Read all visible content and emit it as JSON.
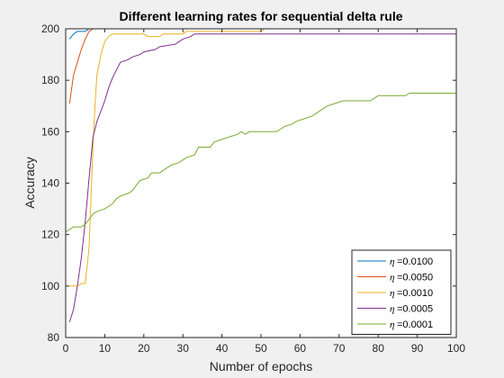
{
  "chart_data": {
    "type": "line",
    "title": "Different learning rates for sequential delta rule",
    "xlabel": "Number of epochs",
    "ylabel": "Accuracy",
    "xlim": [
      0,
      100
    ],
    "ylim": [
      80,
      200
    ],
    "xticks": [
      "0",
      "10",
      "20",
      "30",
      "40",
      "50",
      "60",
      "70",
      "80",
      "90",
      "100"
    ],
    "yticks": [
      "80",
      "100",
      "120",
      "140",
      "160",
      "180",
      "200"
    ],
    "grid": false,
    "legend_position": "bottom-right",
    "series": [
      {
        "name": "=0.0100",
        "color": "#0072BD",
        "points": [
          [
            1,
            196
          ],
          [
            2,
            198
          ],
          [
            3,
            199
          ],
          [
            5,
            199
          ],
          [
            6,
            200
          ],
          [
            100,
            200
          ]
        ]
      },
      {
        "name": "=0.0050",
        "color": "#D95319",
        "points": [
          [
            1,
            171
          ],
          [
            2,
            182
          ],
          [
            3,
            187
          ],
          [
            4,
            192
          ],
          [
            5,
            196
          ],
          [
            6,
            199
          ],
          [
            7,
            200
          ],
          [
            100,
            200
          ]
        ]
      },
      {
        "name": "=0.0010",
        "color": "#EDB120",
        "points": [
          [
            1,
            100
          ],
          [
            2,
            100
          ],
          [
            3,
            100
          ],
          [
            4,
            101
          ],
          [
            5,
            101
          ],
          [
            6,
            115
          ],
          [
            6.5,
            135
          ],
          [
            7,
            155
          ],
          [
            7.5,
            170
          ],
          [
            8,
            182
          ],
          [
            9,
            190
          ],
          [
            10,
            195
          ],
          [
            11,
            197
          ],
          [
            12,
            198
          ],
          [
            20,
            198
          ],
          [
            21,
            197
          ],
          [
            24,
            197
          ],
          [
            25,
            198
          ],
          [
            30,
            198
          ],
          [
            31,
            199
          ],
          [
            50,
            199
          ],
          [
            51,
            200
          ],
          [
            100,
            200
          ]
        ]
      },
      {
        "name": "=0.0005",
        "color": "#7E2F8E",
        "points": [
          [
            1,
            86
          ],
          [
            2,
            91
          ],
          [
            3,
            100
          ],
          [
            4,
            111
          ],
          [
            5,
            125
          ],
          [
            6,
            142
          ],
          [
            7,
            158
          ],
          [
            8,
            164
          ],
          [
            9,
            168
          ],
          [
            10,
            172
          ],
          [
            11,
            177
          ],
          [
            12,
            181
          ],
          [
            13,
            184
          ],
          [
            14,
            187
          ],
          [
            16,
            188
          ],
          [
            17,
            189
          ],
          [
            19,
            190
          ],
          [
            20,
            191
          ],
          [
            23,
            192
          ],
          [
            24,
            193
          ],
          [
            28,
            194
          ],
          [
            29,
            195
          ],
          [
            30,
            196
          ],
          [
            32,
            197
          ],
          [
            33,
            198
          ],
          [
            100,
            198
          ]
        ]
      },
      {
        "name": "=0.0001",
        "color": "#77AC30",
        "points": [
          [
            0,
            121
          ],
          [
            1,
            122
          ],
          [
            2,
            123
          ],
          [
            3,
            123
          ],
          [
            4,
            123
          ],
          [
            5,
            124
          ],
          [
            6,
            126
          ],
          [
            7,
            128
          ],
          [
            8,
            129
          ],
          [
            10,
            130
          ],
          [
            11,
            131
          ],
          [
            12,
            132
          ],
          [
            13,
            134
          ],
          [
            14,
            135
          ],
          [
            16,
            136
          ],
          [
            17,
            137
          ],
          [
            18,
            139
          ],
          [
            19,
            141
          ],
          [
            21,
            142
          ],
          [
            22,
            144
          ],
          [
            24,
            144
          ],
          [
            25,
            145
          ],
          [
            26,
            146
          ],
          [
            27,
            147
          ],
          [
            29,
            148
          ],
          [
            31,
            150
          ],
          [
            33,
            151
          ],
          [
            34,
            154
          ],
          [
            37,
            154
          ],
          [
            38,
            156
          ],
          [
            40,
            157
          ],
          [
            42,
            158
          ],
          [
            44,
            159
          ],
          [
            45,
            160
          ],
          [
            46,
            159
          ],
          [
            47,
            160
          ],
          [
            54,
            160
          ],
          [
            55,
            161
          ],
          [
            56,
            162
          ],
          [
            58,
            163
          ],
          [
            59,
            164
          ],
          [
            61,
            165
          ],
          [
            63,
            166
          ],
          [
            64,
            167
          ],
          [
            66,
            169
          ],
          [
            67,
            170
          ],
          [
            69,
            171
          ],
          [
            71,
            172
          ],
          [
            78,
            172
          ],
          [
            79,
            173
          ],
          [
            80,
            174
          ],
          [
            87,
            174
          ],
          [
            88,
            175
          ],
          [
            100,
            175
          ]
        ]
      }
    ]
  }
}
